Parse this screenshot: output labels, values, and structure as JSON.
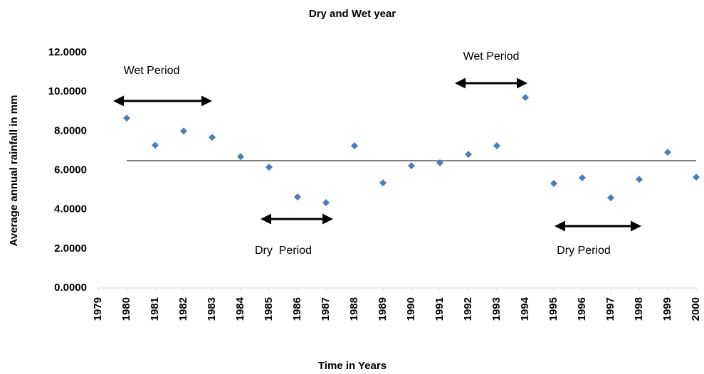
{
  "chart_data": {
    "type": "scatter",
    "title": "Dry and Wet year",
    "x_label": "Time in Years",
    "y_label": "Average annual rainfall in mm",
    "series": [
      {
        "color": "#4a7ebb",
        "x": [
          1980,
          1981,
          1982,
          1983,
          1984,
          1985,
          1986,
          1987,
          1988,
          1989,
          1990,
          1991,
          1992,
          1993,
          1994,
          1995,
          1996,
          1997,
          1998,
          1999,
          2000
        ],
        "values": [
          8.66,
          7.28,
          8.0,
          7.68,
          6.7,
          6.16,
          4.64,
          4.35,
          7.25,
          5.36,
          6.23,
          6.38,
          6.81,
          7.25,
          9.71,
          5.33,
          5.62,
          4.6,
          5.54,
          6.92,
          5.65
        ]
      }
    ],
    "reference_line": {
      "value": 6.49,
      "x": [
        1980,
        2000
      ]
    },
    "xlim": [
      1979,
      2000
    ],
    "xticks": [
      1979,
      1980,
      1981,
      1982,
      1983,
      1984,
      1985,
      1986,
      1987,
      1988,
      1989,
      1990,
      1991,
      1992,
      1993,
      1994,
      1995,
      1996,
      1997,
      1998,
      1999,
      2000
    ],
    "ylim": [
      0,
      12
    ],
    "yticks": [
      {
        "value": 0,
        "label": "0.0000"
      },
      {
        "value": 2,
        "label": "2.0000"
      },
      {
        "value": 4,
        "label": "4.0000"
      },
      {
        "value": 6,
        "label": "6.0000"
      },
      {
        "value": 8,
        "label": "8.0000"
      },
      {
        "value": 10,
        "label": "10.0000"
      },
      {
        "value": 12,
        "label": "12.0000"
      }
    ],
    "annotations": [
      "Wet Period",
      "Wet Period",
      "Dry  Period",
      "Dry Period"
    ]
  }
}
